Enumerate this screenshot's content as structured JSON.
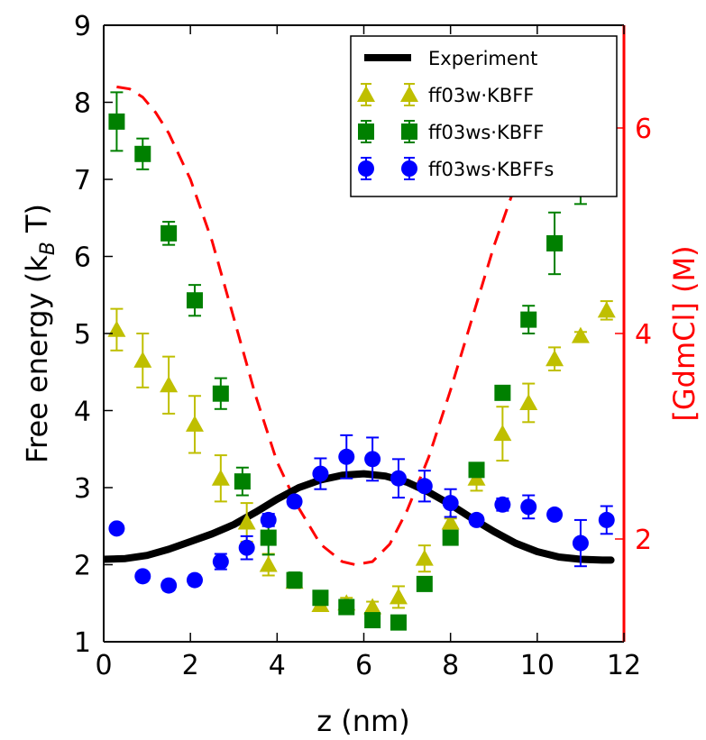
{
  "chart_data": {
    "type": "scatter",
    "xlabel": "z (nm)",
    "ylabel_left": "Free energy (k",
    "ylabel_left_sub": "B",
    "ylabel_left_end": " T)",
    "ylabel_right": "[GdmCl] (M)",
    "xlim": [
      0,
      12
    ],
    "ylim_left": [
      1,
      9
    ],
    "ylim_right": [
      1.0,
      7.0
    ],
    "xticks": [
      0,
      2,
      4,
      6,
      8,
      10,
      12
    ],
    "yticks_left": [
      1,
      2,
      3,
      4,
      5,
      6,
      7,
      8,
      9
    ],
    "yticks_right": [
      2,
      4,
      6
    ],
    "right_axis_color": "#ff0000",
    "legend_position": "top-right",
    "series": [
      {
        "name": "Experiment",
        "kind": "line",
        "color": "#000000",
        "x": [
          0,
          0.5,
          1,
          1.5,
          2,
          2.5,
          3,
          3.5,
          4,
          4.5,
          5,
          5.5,
          6,
          6.5,
          7,
          7.5,
          8,
          8.5,
          9,
          9.5,
          10,
          10.5,
          11,
          11.5,
          11.7
        ],
        "y": [
          2.07,
          2.08,
          2.12,
          2.2,
          2.3,
          2.4,
          2.52,
          2.68,
          2.85,
          3.0,
          3.1,
          3.16,
          3.18,
          3.15,
          3.07,
          2.94,
          2.78,
          2.6,
          2.43,
          2.28,
          2.17,
          2.1,
          2.07,
          2.06,
          2.06
        ]
      },
      {
        "name": "ff03w·KBFF",
        "kind": "points",
        "marker": "triangle",
        "color": "#bfbf00",
        "x": [
          0.3,
          0.9,
          1.5,
          2.1,
          2.7,
          3.3,
          3.8,
          4.4,
          5.0,
          5.6,
          6.2,
          6.8,
          7.4,
          8.0,
          8.6,
          9.2,
          9.8,
          10.4,
          11.0,
          11.6
        ],
        "y": [
          5.05,
          4.65,
          4.33,
          3.82,
          3.12,
          2.55,
          2.0,
          1.78,
          1.48,
          1.5,
          1.45,
          1.58,
          2.08,
          2.55,
          3.12,
          3.7,
          4.1,
          4.67,
          4.97,
          5.3
        ],
        "err": [
          0.27,
          0.35,
          0.37,
          0.37,
          0.3,
          0.25,
          0.14,
          0.07,
          0.05,
          0.07,
          0.07,
          0.14,
          0.17,
          0.05,
          0.16,
          0.35,
          0.25,
          0.15,
          0.05,
          0.12
        ]
      },
      {
        "name": "ff03ws·KBFF",
        "kind": "points",
        "marker": "square",
        "color": "#008000",
        "x": [
          0.3,
          0.9,
          1.5,
          2.1,
          2.7,
          3.2,
          3.8,
          4.4,
          5.0,
          5.6,
          6.2,
          6.8,
          7.4,
          8.0,
          8.6,
          9.2,
          9.8,
          10.4,
          11.0
        ],
        "y": [
          7.75,
          7.33,
          6.3,
          5.43,
          4.22,
          3.08,
          2.35,
          1.8,
          1.57,
          1.45,
          1.28,
          1.25,
          1.75,
          2.35,
          3.23,
          4.23,
          5.18,
          6.17,
          6.9
        ],
        "err": [
          0.38,
          0.2,
          0.15,
          0.2,
          0.2,
          0.18,
          0.22,
          0.1,
          0.08,
          0.07,
          0.08,
          0.07,
          0.07,
          0.08,
          0.07,
          0.05,
          0.18,
          0.4,
          0.22
        ]
      },
      {
        "name": "ff03ws·KBFFs",
        "kind": "points",
        "marker": "circle",
        "color": "#0000ff",
        "x": [
          0.3,
          0.9,
          1.5,
          2.1,
          2.7,
          3.3,
          3.8,
          4.4,
          5.0,
          5.6,
          6.2,
          6.8,
          7.4,
          8.0,
          8.6,
          9.2,
          9.8,
          10.4,
          11.0,
          11.6
        ],
        "y": [
          2.47,
          1.85,
          1.73,
          1.8,
          2.04,
          2.22,
          2.58,
          2.82,
          3.18,
          3.4,
          3.37,
          3.12,
          3.02,
          2.8,
          2.58,
          2.78,
          2.75,
          2.65,
          2.28,
          2.58
        ],
        "err": [
          0.0,
          0.05,
          0.06,
          0.06,
          0.1,
          0.15,
          0.08,
          0.05,
          0.2,
          0.28,
          0.28,
          0.25,
          0.2,
          0.18,
          0.06,
          0.08,
          0.15,
          0.05,
          0.3,
          0.18
        ]
      },
      {
        "name": "",
        "kind": "dashed-line",
        "axis": "right",
        "color": "#ff0000",
        "x": [
          0.3,
          0.6,
          0.9,
          1.2,
          1.5,
          2.0,
          2.5,
          3.0,
          3.5,
          4.0,
          4.5,
          5.0,
          5.5,
          5.8,
          6.2,
          6.6,
          7.0,
          7.5,
          8.0,
          8.5,
          9.0,
          9.5,
          10.0,
          10.5,
          11.0,
          11.4,
          11.7
        ],
        "y": [
          6.4,
          6.38,
          6.3,
          6.15,
          5.95,
          5.5,
          4.9,
          4.15,
          3.4,
          2.75,
          2.3,
          1.95,
          1.78,
          1.75,
          1.78,
          1.95,
          2.28,
          2.8,
          3.45,
          4.15,
          4.85,
          5.45,
          5.9,
          6.18,
          6.35,
          6.42,
          6.45
        ]
      }
    ]
  }
}
